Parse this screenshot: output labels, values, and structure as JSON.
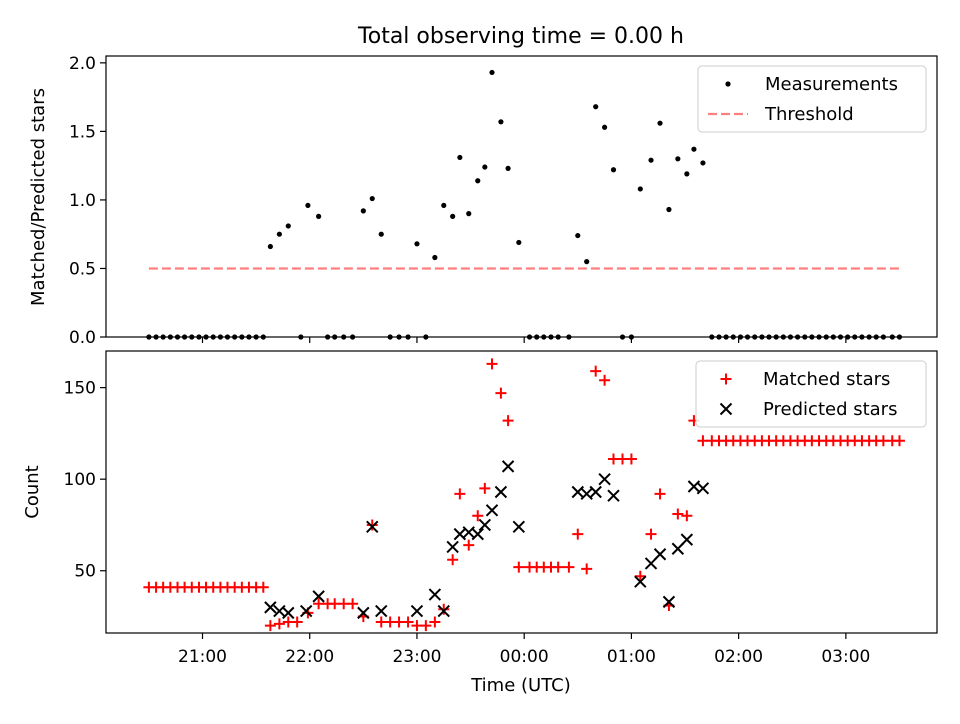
{
  "title": "Total observing time = 0.00 h",
  "colors": {
    "measurements": "#000000",
    "threshold": "#ff7f7f",
    "matched": "#ff0000",
    "predicted": "#000000"
  },
  "chart_data": [
    {
      "type": "scatter",
      "title": "Total observing time = 0.00 h",
      "xlabel": "",
      "ylabel": "Matched/Predicted stars",
      "xlim_hours": [
        20.1,
        27.85
      ],
      "ylim": [
        0,
        2.05
      ],
      "yticks": [
        0.0,
        0.5,
        1.0,
        1.5,
        2.0
      ],
      "ytick_labels": [
        "0.0",
        "0.5",
        "1.0",
        "1.5",
        "2.0"
      ],
      "legend": {
        "placement": "top-right",
        "entries": [
          "Measurements",
          "Threshold"
        ]
      },
      "threshold": {
        "name": "Threshold",
        "value": 0.5,
        "x_range": [
          20.5,
          27.5
        ]
      },
      "series": [
        {
          "name": "Measurements",
          "marker": "dot",
          "points": [
            [
              20.5,
              0
            ],
            [
              20.567,
              0
            ],
            [
              20.633,
              0
            ],
            [
              20.7,
              0
            ],
            [
              20.767,
              0
            ],
            [
              20.833,
              0
            ],
            [
              20.9,
              0
            ],
            [
              20.967,
              0
            ],
            [
              21.033,
              0
            ],
            [
              21.1,
              0
            ],
            [
              21.167,
              0
            ],
            [
              21.233,
              0
            ],
            [
              21.3,
              0
            ],
            [
              21.367,
              0
            ],
            [
              21.433,
              0
            ],
            [
              21.5,
              0
            ],
            [
              21.567,
              0
            ],
            [
              21.633,
              0.66
            ],
            [
              21.717,
              0.75
            ],
            [
              21.8,
              0.81
            ],
            [
              21.917,
              0
            ],
            [
              21.983,
              0.96
            ],
            [
              22.083,
              0.88
            ],
            [
              22.167,
              0
            ],
            [
              22.233,
              0
            ],
            [
              22.317,
              0
            ],
            [
              22.4,
              0
            ],
            [
              22.5,
              0.92
            ],
            [
              22.583,
              1.01
            ],
            [
              22.667,
              0.75
            ],
            [
              22.75,
              0
            ],
            [
              22.833,
              0
            ],
            [
              22.917,
              0
            ],
            [
              23.0,
              0.68
            ],
            [
              23.083,
              0
            ],
            [
              23.167,
              0.58
            ],
            [
              23.25,
              0.96
            ],
            [
              23.333,
              0.88
            ],
            [
              23.4,
              1.31
            ],
            [
              23.483,
              0.9
            ],
            [
              23.567,
              1.14
            ],
            [
              23.633,
              1.24
            ],
            [
              23.7,
              1.93
            ],
            [
              23.783,
              1.57
            ],
            [
              23.85,
              1.23
            ],
            [
              23.95,
              0.69
            ],
            [
              24.05,
              0
            ],
            [
              24.117,
              0
            ],
            [
              24.183,
              0
            ],
            [
              24.25,
              0
            ],
            [
              24.317,
              0
            ],
            [
              24.417,
              0
            ],
            [
              24.5,
              0.74
            ],
            [
              24.583,
              0.55
            ],
            [
              24.667,
              1.68
            ],
            [
              24.75,
              1.53
            ],
            [
              24.833,
              1.22
            ],
            [
              24.917,
              0
            ],
            [
              25.0,
              0
            ],
            [
              25.083,
              1.08
            ],
            [
              25.183,
              1.29
            ],
            [
              25.267,
              1.56
            ],
            [
              25.35,
              0.93
            ],
            [
              25.433,
              1.3
            ],
            [
              25.517,
              1.19
            ],
            [
              25.583,
              1.37
            ],
            [
              25.667,
              1.27
            ],
            [
              25.75,
              0
            ],
            [
              25.817,
              0
            ],
            [
              25.883,
              0
            ],
            [
              25.95,
              0
            ],
            [
              26.017,
              0
            ],
            [
              26.083,
              0
            ],
            [
              26.15,
              0
            ],
            [
              26.217,
              0
            ],
            [
              26.283,
              0
            ],
            [
              26.35,
              0
            ],
            [
              26.417,
              0
            ],
            [
              26.483,
              0
            ],
            [
              26.55,
              0
            ],
            [
              26.617,
              0
            ],
            [
              26.683,
              0
            ],
            [
              26.75,
              0
            ],
            [
              26.817,
              0
            ],
            [
              26.883,
              0
            ],
            [
              26.95,
              0
            ],
            [
              27.017,
              0
            ],
            [
              27.083,
              0
            ],
            [
              27.15,
              0
            ],
            [
              27.217,
              0
            ],
            [
              27.283,
              0
            ],
            [
              27.35,
              0
            ],
            [
              27.433,
              0
            ],
            [
              27.5,
              0
            ]
          ]
        }
      ]
    },
    {
      "type": "scatter",
      "title": "",
      "xlabel": "Time (UTC)",
      "ylabel": "Count",
      "xlim_hours": [
        20.1,
        27.85
      ],
      "ylim": [
        16,
        170
      ],
      "yticks": [
        50,
        100,
        150
      ],
      "ytick_labels": [
        "50",
        "100",
        "150"
      ],
      "xticks_hours": [
        21,
        22,
        23,
        24,
        25,
        26,
        27
      ],
      "xtick_labels": [
        "21:00",
        "22:00",
        "23:00",
        "00:00",
        "01:00",
        "02:00",
        "03:00"
      ],
      "legend": {
        "placement": "top-right",
        "entries": [
          "Matched stars",
          "Predicted stars"
        ]
      },
      "series": [
        {
          "name": "Matched stars",
          "marker": "plus",
          "points": [
            [
              20.5,
              41
            ],
            [
              20.567,
              41
            ],
            [
              20.633,
              41
            ],
            [
              20.7,
              41
            ],
            [
              20.767,
              41
            ],
            [
              20.833,
              41
            ],
            [
              20.9,
              41
            ],
            [
              20.967,
              41
            ],
            [
              21.033,
              41
            ],
            [
              21.1,
              41
            ],
            [
              21.167,
              41
            ],
            [
              21.233,
              41
            ],
            [
              21.3,
              41
            ],
            [
              21.367,
              41
            ],
            [
              21.433,
              41
            ],
            [
              21.5,
              41
            ],
            [
              21.567,
              41
            ],
            [
              21.633,
              20
            ],
            [
              21.717,
              21
            ],
            [
              21.8,
              22
            ],
            [
              21.883,
              22
            ],
            [
              21.983,
              27
            ],
            [
              22.083,
              32
            ],
            [
              22.167,
              32
            ],
            [
              22.233,
              32
            ],
            [
              22.317,
              32
            ],
            [
              22.4,
              32
            ],
            [
              22.5,
              25
            ],
            [
              22.583,
              75
            ],
            [
              22.667,
              22
            ],
            [
              22.75,
              22
            ],
            [
              22.833,
              22
            ],
            [
              22.917,
              22
            ],
            [
              23.0,
              20
            ],
            [
              23.083,
              20
            ],
            [
              23.167,
              22
            ],
            [
              23.25,
              29
            ],
            [
              23.333,
              56
            ],
            [
              23.4,
              92
            ],
            [
              23.483,
              64
            ],
            [
              23.567,
              80
            ],
            [
              23.633,
              95
            ],
            [
              23.7,
              163
            ],
            [
              23.783,
              147
            ],
            [
              23.85,
              132
            ],
            [
              23.95,
              52
            ],
            [
              24.05,
              52
            ],
            [
              24.117,
              52
            ],
            [
              24.183,
              52
            ],
            [
              24.25,
              52
            ],
            [
              24.317,
              52
            ],
            [
              24.417,
              52
            ],
            [
              24.5,
              70
            ],
            [
              24.583,
              51
            ],
            [
              24.667,
              159
            ],
            [
              24.75,
              154
            ],
            [
              24.833,
              111
            ],
            [
              24.917,
              111
            ],
            [
              25.0,
              111
            ],
            [
              25.083,
              47
            ],
            [
              25.183,
              70
            ],
            [
              25.267,
              92
            ],
            [
              25.35,
              31
            ],
            [
              25.433,
              81
            ],
            [
              25.517,
              80
            ],
            [
              25.583,
              132
            ],
            [
              25.667,
              121
            ],
            [
              25.75,
              121
            ],
            [
              25.817,
              121
            ],
            [
              25.883,
              121
            ],
            [
              25.95,
              121
            ],
            [
              26.017,
              121
            ],
            [
              26.083,
              121
            ],
            [
              26.15,
              121
            ],
            [
              26.217,
              121
            ],
            [
              26.283,
              121
            ],
            [
              26.35,
              121
            ],
            [
              26.417,
              121
            ],
            [
              26.483,
              121
            ],
            [
              26.55,
              121
            ],
            [
              26.617,
              121
            ],
            [
              26.683,
              121
            ],
            [
              26.75,
              121
            ],
            [
              26.817,
              121
            ],
            [
              26.883,
              121
            ],
            [
              26.95,
              121
            ],
            [
              27.017,
              121
            ],
            [
              27.083,
              121
            ],
            [
              27.15,
              121
            ],
            [
              27.217,
              121
            ],
            [
              27.283,
              121
            ],
            [
              27.35,
              121
            ],
            [
              27.433,
              121
            ],
            [
              27.5,
              121
            ]
          ]
        },
        {
          "name": "Predicted stars",
          "marker": "x",
          "points": [
            [
              21.633,
              30
            ],
            [
              21.717,
              28
            ],
            [
              21.8,
              27
            ],
            [
              21.967,
              28
            ],
            [
              22.083,
              36
            ],
            [
              22.5,
              27
            ],
            [
              22.583,
              74
            ],
            [
              22.667,
              28
            ],
            [
              23.0,
              28
            ],
            [
              23.167,
              37
            ],
            [
              23.25,
              28
            ],
            [
              23.333,
              63
            ],
            [
              23.4,
              70
            ],
            [
              23.483,
              71
            ],
            [
              23.567,
              70
            ],
            [
              23.633,
              75
            ],
            [
              23.7,
              83
            ],
            [
              23.783,
              93
            ],
            [
              23.85,
              107
            ],
            [
              23.95,
              74
            ],
            [
              24.5,
              93
            ],
            [
              24.583,
              92
            ],
            [
              24.667,
              93
            ],
            [
              24.75,
              100
            ],
            [
              24.833,
              91
            ],
            [
              25.083,
              44
            ],
            [
              25.183,
              54
            ],
            [
              25.267,
              59
            ],
            [
              25.35,
              33
            ],
            [
              25.433,
              62
            ],
            [
              25.517,
              67
            ],
            [
              25.583,
              96
            ],
            [
              25.667,
              95
            ]
          ]
        }
      ]
    }
  ]
}
